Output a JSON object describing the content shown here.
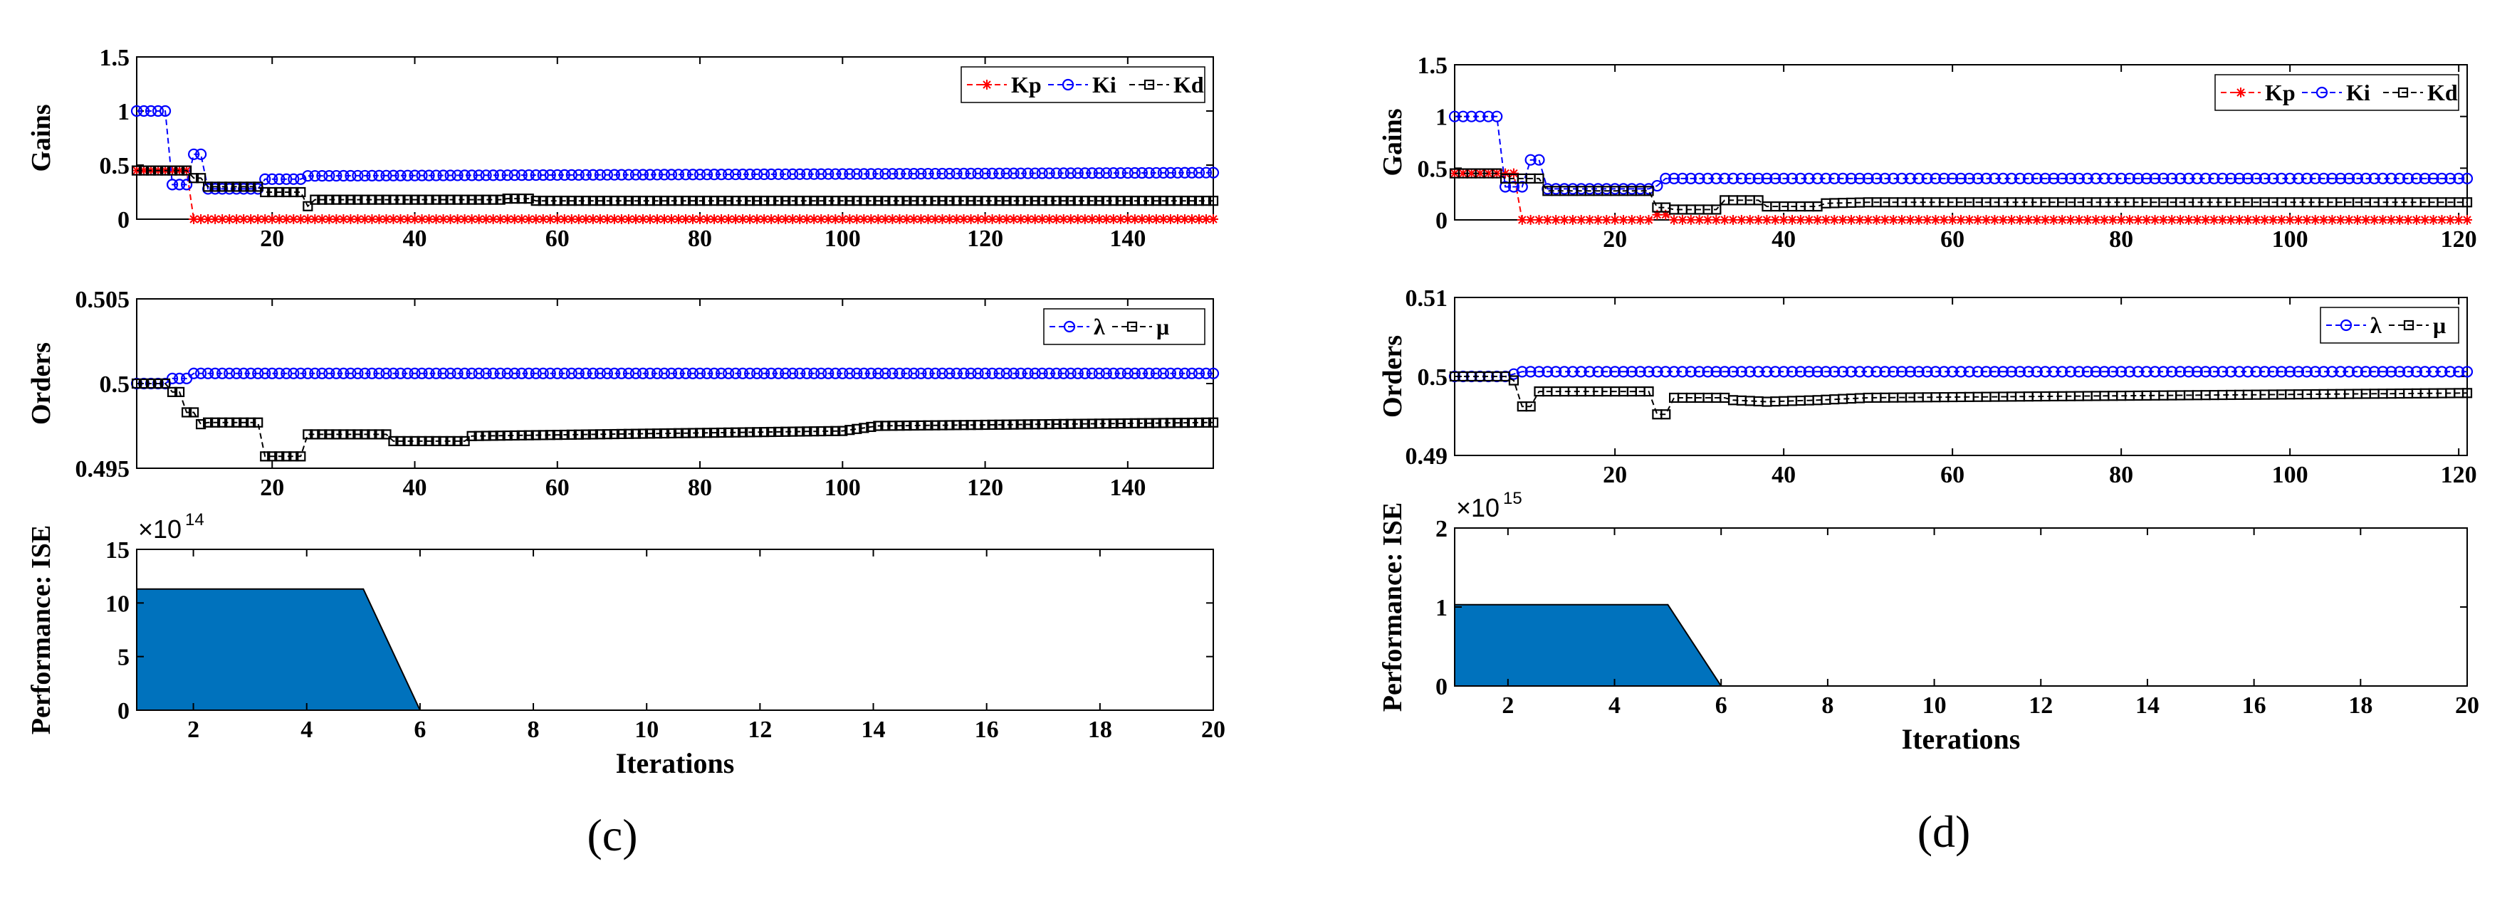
{
  "colors": {
    "kp": "#ff0000",
    "ki": "#0000ff",
    "kd": "#000000",
    "lambda": "#0000ff",
    "mu": "#000000",
    "area": "#0072bd"
  },
  "chart_data": [
    {
      "id": "c",
      "panel_label": "(c)",
      "gains": {
        "type": "line",
        "ylabel": "Gains",
        "xlim": [
          1,
          152
        ],
        "ylim": [
          0,
          1.5
        ],
        "xticks": [
          20,
          40,
          60,
          80,
          100,
          120,
          140
        ],
        "yticks": [
          {
            "v": 0,
            "label": "0"
          },
          {
            "v": 0.5,
            "label": "0.5"
          },
          {
            "v": 1,
            "label": "1"
          },
          {
            "v": 1.5,
            "label": "1.5"
          }
        ],
        "legend": {
          "position": "top-right",
          "labels": [
            "Kp",
            "Ki",
            "Kd"
          ]
        },
        "series": [
          {
            "name": "Kp",
            "marker": "star",
            "steps": [
              [
                1,
                0.45
              ],
              [
                8,
                0.45
              ],
              [
                9,
                0.0
              ],
              [
                152,
                0.0
              ]
            ]
          },
          {
            "name": "Ki",
            "marker": "circle",
            "steps": [
              [
                1,
                1.0
              ],
              [
                5,
                1.0
              ],
              [
                6,
                0.32
              ],
              [
                8,
                0.32
              ],
              [
                9,
                0.6
              ],
              [
                10,
                0.6
              ],
              [
                11,
                0.28
              ],
              [
                18,
                0.28
              ],
              [
                19,
                0.37
              ],
              [
                24,
                0.37
              ],
              [
                25,
                0.4
              ],
              [
                152,
                0.43
              ]
            ]
          },
          {
            "name": "Kd",
            "marker": "square",
            "steps": [
              [
                1,
                0.45
              ],
              [
                8,
                0.45
              ],
              [
                9,
                0.38
              ],
              [
                10,
                0.38
              ],
              [
                11,
                0.3
              ],
              [
                18,
                0.3
              ],
              [
                19,
                0.25
              ],
              [
                24,
                0.25
              ],
              [
                25,
                0.12
              ],
              [
                26,
                0.18
              ],
              [
                52,
                0.18
              ],
              [
                53,
                0.19
              ],
              [
                56,
                0.19
              ],
              [
                57,
                0.17
              ],
              [
                152,
                0.17
              ]
            ]
          }
        ]
      },
      "orders": {
        "type": "line",
        "ylabel": "Orders",
        "xlim": [
          1,
          152
        ],
        "ylim": [
          0.495,
          0.505
        ],
        "xticks": [
          20,
          40,
          60,
          80,
          100,
          120,
          140
        ],
        "yticks": [
          {
            "v": 0.495,
            "label": "0.495"
          },
          {
            "v": 0.5,
            "label": "0.5"
          },
          {
            "v": 0.505,
            "label": "0.505"
          }
        ],
        "legend": {
          "position": "top-right",
          "labels": [
            "λ",
            "μ"
          ]
        },
        "series": [
          {
            "name": "λ",
            "marker": "circle",
            "steps": [
              [
                1,
                0.5
              ],
              [
                5,
                0.5
              ],
              [
                6,
                0.5003
              ],
              [
                8,
                0.5003
              ],
              [
                9,
                0.5006
              ],
              [
                152,
                0.5006
              ]
            ]
          },
          {
            "name": "μ",
            "marker": "square",
            "steps": [
              [
                1,
                0.5
              ],
              [
                5,
                0.5
              ],
              [
                6,
                0.4995
              ],
              [
                7,
                0.4995
              ],
              [
                8,
                0.4983
              ],
              [
                9,
                0.4983
              ],
              [
                10,
                0.4976
              ],
              [
                11,
                0.4977
              ],
              [
                18,
                0.4977
              ],
              [
                19,
                0.4957
              ],
              [
                24,
                0.4957
              ],
              [
                25,
                0.497
              ],
              [
                36,
                0.497
              ],
              [
                37,
                0.4966
              ],
              [
                47,
                0.4966
              ],
              [
                48,
                0.4969
              ],
              [
                100,
                0.4972
              ],
              [
                105,
                0.4975
              ],
              [
                152,
                0.4977
              ]
            ]
          }
        ]
      },
      "performance": {
        "type": "area",
        "ylabel": "Performance: ISE",
        "xlabel": "Iterations",
        "multiplier_base": "×10",
        "multiplier_exp": "14",
        "xlim": [
          1,
          20
        ],
        "ylim": [
          0,
          15
        ],
        "xticks": [
          2,
          4,
          6,
          8,
          10,
          12,
          14,
          16,
          18,
          20
        ],
        "yticks": [
          {
            "v": 0,
            "label": "0"
          },
          {
            "v": 5,
            "label": "5"
          },
          {
            "v": 10,
            "label": "10"
          },
          {
            "v": 15,
            "label": "15"
          }
        ],
        "x": [
          1,
          2,
          3,
          4,
          5,
          6,
          7,
          8,
          9,
          10,
          11,
          12,
          13,
          14,
          15,
          16,
          17,
          18,
          19,
          20
        ],
        "values": [
          11.3,
          11.3,
          11.3,
          11.3,
          11.3,
          0,
          0,
          0,
          0,
          0,
          0,
          0,
          0,
          0,
          0,
          0,
          0,
          0,
          0,
          0
        ]
      }
    },
    {
      "id": "d",
      "panel_label": "(d)",
      "gains": {
        "type": "line",
        "ylabel": "Gains",
        "xlim": [
          1,
          121
        ],
        "ylim": [
          0,
          1.5
        ],
        "xticks": [
          20,
          40,
          60,
          80,
          100,
          120
        ],
        "yticks": [
          {
            "v": 0,
            "label": "0"
          },
          {
            "v": 0.5,
            "label": "0.5"
          },
          {
            "v": 1,
            "label": "1"
          },
          {
            "v": 1.5,
            "label": "1.5"
          }
        ],
        "legend": {
          "position": "top-right",
          "labels": [
            "Kp",
            "Ki",
            "Kd"
          ]
        },
        "series": [
          {
            "name": "Kp",
            "marker": "star",
            "steps": [
              [
                1,
                0.45
              ],
              [
                8,
                0.45
              ],
              [
                9,
                0.0
              ],
              [
                24,
                0.0
              ],
              [
                25,
                0.05
              ],
              [
                26,
                0.05
              ],
              [
                27,
                0.0
              ],
              [
                121,
                0.0
              ]
            ]
          },
          {
            "name": "Ki",
            "marker": "circle",
            "steps": [
              [
                1,
                1.0
              ],
              [
                6,
                1.0
              ],
              [
                7,
                0.32
              ],
              [
                9,
                0.32
              ],
              [
                10,
                0.58
              ],
              [
                11,
                0.58
              ],
              [
                12,
                0.3
              ],
              [
                24,
                0.3
              ],
              [
                25,
                0.33
              ],
              [
                26,
                0.4
              ],
              [
                121,
                0.4
              ]
            ]
          },
          {
            "name": "Kd",
            "marker": "square",
            "steps": [
              [
                1,
                0.45
              ],
              [
                6,
                0.45
              ],
              [
                7,
                0.4
              ],
              [
                11,
                0.4
              ],
              [
                12,
                0.28
              ],
              [
                24,
                0.28
              ],
              [
                25,
                0.12
              ],
              [
                26,
                0.12
              ],
              [
                27,
                0.1
              ],
              [
                32,
                0.1
              ],
              [
                33,
                0.19
              ],
              [
                37,
                0.19
              ],
              [
                38,
                0.13
              ],
              [
                44,
                0.13
              ],
              [
                45,
                0.16
              ],
              [
                50,
                0.17
              ],
              [
                121,
                0.17
              ]
            ]
          }
        ]
      },
      "orders": {
        "type": "line",
        "ylabel": "Orders",
        "xlim": [
          1,
          121
        ],
        "ylim": [
          0.49,
          0.51
        ],
        "xticks": [
          20,
          40,
          60,
          80,
          100,
          120
        ],
        "yticks": [
          {
            "v": 0.49,
            "label": "0.49"
          },
          {
            "v": 0.5,
            "label": "0.5"
          },
          {
            "v": 0.51,
            "label": "0.51"
          }
        ],
        "legend": {
          "position": "top-right",
          "labels": [
            "λ",
            "μ"
          ]
        },
        "series": [
          {
            "name": "λ",
            "marker": "circle",
            "steps": [
              [
                1,
                0.5
              ],
              [
                7,
                0.5
              ],
              [
                8,
                0.5003
              ],
              [
                9,
                0.5006
              ],
              [
                121,
                0.5006
              ]
            ]
          },
          {
            "name": "μ",
            "marker": "square",
            "steps": [
              [
                1,
                0.5
              ],
              [
                7,
                0.5
              ],
              [
                8,
                0.4995
              ],
              [
                9,
                0.4962
              ],
              [
                10,
                0.4962
              ],
              [
                11,
                0.4981
              ],
              [
                24,
                0.4981
              ],
              [
                25,
                0.4952
              ],
              [
                26,
                0.4952
              ],
              [
                27,
                0.4973
              ],
              [
                33,
                0.4973
              ],
              [
                34,
                0.497
              ],
              [
                38,
                0.4968
              ],
              [
                44,
                0.497
              ],
              [
                50,
                0.4973
              ],
              [
                121,
                0.4979
              ]
            ]
          }
        ]
      },
      "performance": {
        "type": "area",
        "ylabel": "Performance: ISE",
        "xlabel": "Iterations",
        "multiplier_base": "×10",
        "multiplier_exp": "15",
        "xlim": [
          1,
          20
        ],
        "ylim": [
          0,
          2
        ],
        "xticks": [
          2,
          4,
          6,
          8,
          10,
          12,
          14,
          16,
          18,
          20
        ],
        "yticks": [
          {
            "v": 0,
            "label": "0"
          },
          {
            "v": 1,
            "label": "1"
          },
          {
            "v": 2,
            "label": "2"
          }
        ],
        "x": [
          1,
          2,
          3,
          4,
          5,
          6,
          7,
          8,
          9,
          10,
          11,
          12,
          13,
          14,
          15,
          16,
          17,
          18,
          19,
          20
        ],
        "values": [
          1.03,
          1.03,
          1.03,
          1.03,
          1.03,
          0,
          0,
          0,
          0,
          0,
          0,
          0,
          0,
          0,
          0,
          0,
          0,
          0,
          0,
          0
        ]
      }
    }
  ]
}
